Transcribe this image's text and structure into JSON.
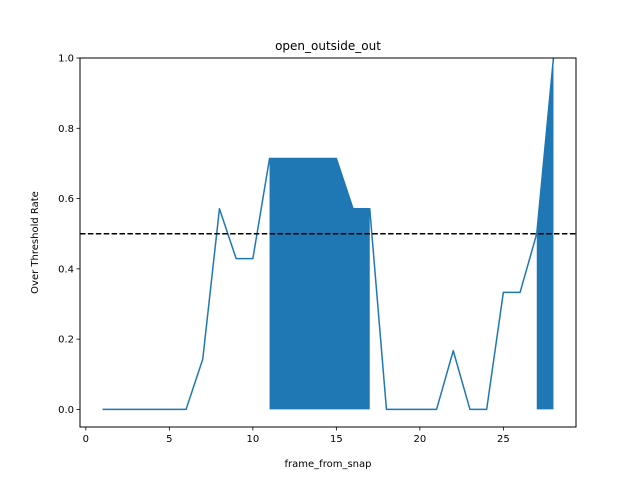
{
  "chart_data": {
    "type": "line",
    "title": "open_outside_out",
    "xlabel": "frame_from_snap",
    "ylabel": "Over Threshold Rate",
    "xlim": [
      -0.35,
      29.35
    ],
    "ylim": [
      -0.05,
      1.0
    ],
    "xticks": [
      0,
      5,
      10,
      15,
      20,
      25
    ],
    "yticks": [
      0.0,
      0.2,
      0.4,
      0.6,
      0.8,
      1.0
    ],
    "xtick_labels": [
      "0",
      "5",
      "10",
      "15",
      "20",
      "25"
    ],
    "ytick_labels": [
      "0.0",
      "0.2",
      "0.4",
      "0.6",
      "0.8",
      "1.0"
    ],
    "threshold": 0.5,
    "grid": false,
    "series": [
      {
        "color": "#1f77b4",
        "x": [
          1,
          2,
          3,
          4,
          5,
          6,
          7,
          8,
          9,
          10,
          11,
          12,
          13,
          14,
          15,
          16,
          17,
          18,
          19,
          20,
          21,
          22,
          23,
          24,
          25,
          26,
          27,
          28
        ],
        "values": [
          0.0,
          0.0,
          0.0,
          0.0,
          0.0,
          0.0,
          0.143,
          0.571,
          0.429,
          0.429,
          0.714,
          0.714,
          0.714,
          0.714,
          0.714,
          0.571,
          0.571,
          0.0,
          0.0,
          0.0,
          0.0,
          0.167,
          0.0,
          0.0,
          0.333,
          0.333,
          0.5,
          1.0
        ]
      }
    ],
    "fills": [
      {
        "color": "#1f77b4",
        "x": [
          11,
          12,
          13,
          14,
          15,
          16,
          17
        ],
        "y1": [
          0.714,
          0.714,
          0.714,
          0.714,
          0.714,
          0.571,
          0.571
        ],
        "y0": 0
      },
      {
        "color": "#1f77b4",
        "x": [
          27,
          28
        ],
        "y1": [
          0.5,
          1.0
        ],
        "y0": 0
      }
    ]
  }
}
